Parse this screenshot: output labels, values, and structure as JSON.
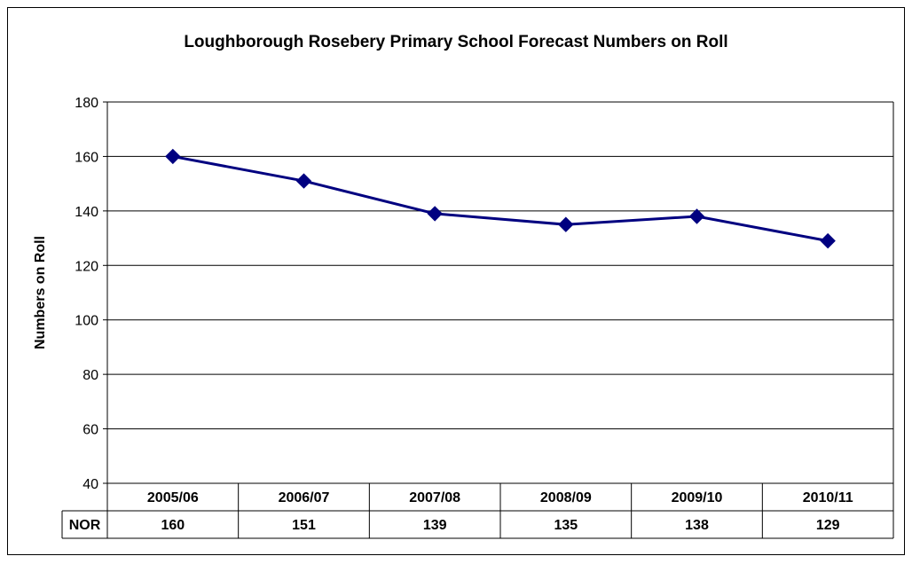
{
  "chart_data": {
    "type": "line",
    "title": "Loughborough Rosebery Primary School Forecast Numbers on Roll",
    "ylabel": "Numbers on Roll",
    "xlabel": "",
    "categories": [
      "2005/06",
      "2006/07",
      "2007/08",
      "2008/09",
      "2009/10",
      "2010/11"
    ],
    "series": [
      {
        "name": "NOR",
        "values": [
          160,
          151,
          139,
          135,
          138,
          129
        ]
      }
    ],
    "ylim": [
      40,
      180
    ],
    "yticks": [
      40,
      60,
      80,
      100,
      120,
      140,
      160,
      180
    ],
    "grid": true,
    "legend": "none",
    "data_table": true,
    "line_color": "#000080",
    "marker": "diamond"
  }
}
